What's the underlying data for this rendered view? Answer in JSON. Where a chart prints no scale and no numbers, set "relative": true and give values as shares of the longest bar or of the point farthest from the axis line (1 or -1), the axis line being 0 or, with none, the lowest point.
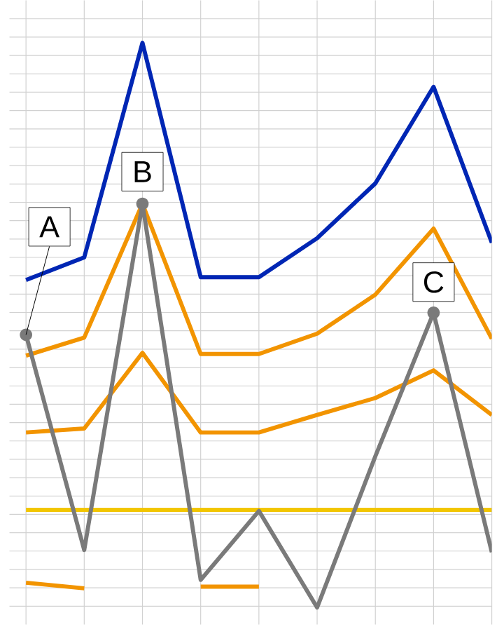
{
  "chart_data": {
    "type": "line",
    "relative": true,
    "grid": true,
    "categories": [
      null,
      null,
      null,
      null,
      null,
      null,
      null,
      null,
      null
    ],
    "series": [
      {
        "color": "#0026b4",
        "values": [
          0.58,
          0.62,
          1.0,
          0.585,
          0.585,
          0.654,
          0.751,
          0.922,
          0.646
        ]
      },
      {
        "color": "#f29400",
        "values": [
          0.446,
          0.478,
          0.715,
          0.449,
          0.449,
          0.485,
          0.554,
          0.671,
          0.476
        ]
      },
      {
        "color": "#f29400",
        "values": [
          0.31,
          0.317,
          0.451,
          0.31,
          0.31,
          0.341,
          0.371,
          0.42,
          0.341
        ]
      },
      {
        "color": "#f2c600",
        "values": [
          0.173,
          0.173,
          0.173,
          0.173,
          0.173,
          0.173,
          0.173,
          0.173,
          0.173
        ]
      },
      {
        "color": "#7a7a7a",
        "values": [
          0.483,
          0.102,
          0.715,
          0.049,
          0.171,
          0.0,
          0.268,
          0.522,
          0.098
        ]
      },
      {
        "color": "#f29400",
        "values": [
          0.044,
          0.034,
          null,
          0.037,
          0.037,
          null,
          null,
          null,
          null
        ]
      }
    ],
    "annotations": [
      "A",
      {
        "text": "B",
        "y": 0.715
      },
      {
        "text": "C",
        "y": 0.522
      }
    ]
  }
}
